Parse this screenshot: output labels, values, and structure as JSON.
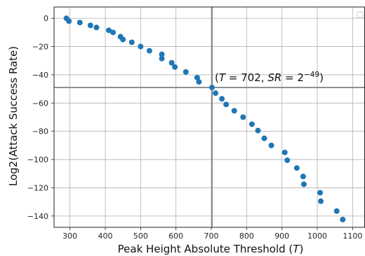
{
  "chart_data": {
    "type": "scatter",
    "title": "",
    "xlabel": "Peak Height Absolute Threshold (T)",
    "ylabel": "Log2(Attack Success Rate)",
    "xlim": [
      255,
      1135
    ],
    "ylim": [
      -148,
      8
    ],
    "x_ticks": [
      300,
      400,
      500,
      600,
      700,
      800,
      900,
      1000,
      1100
    ],
    "y_ticks": [
      0,
      -20,
      -40,
      -60,
      -80,
      -100,
      -120,
      -140
    ],
    "grid": true,
    "legend": "top-right (empty)",
    "series": [
      {
        "color": "#1f77b4",
        "points": [
          [
            290,
            0
          ],
          [
            297,
            -2
          ],
          [
            328,
            -3
          ],
          [
            358,
            -5
          ],
          [
            375,
            -6.5
          ],
          [
            410,
            -8.5
          ],
          [
            422,
            -10
          ],
          [
            443,
            -13
          ],
          [
            450,
            -15
          ],
          [
            475,
            -17
          ],
          [
            500,
            -20
          ],
          [
            525,
            -23
          ],
          [
            560,
            -25.5
          ],
          [
            560,
            -28.5
          ],
          [
            588,
            -31.5
          ],
          [
            597,
            -34.5
          ],
          [
            628,
            -38
          ],
          [
            660,
            -42
          ],
          [
            665,
            -45
          ],
          [
            702,
            -49
          ],
          [
            712,
            -53
          ],
          [
            730,
            -57
          ],
          [
            742,
            -61
          ],
          [
            765,
            -65.5
          ],
          [
            790,
            -70
          ],
          [
            815,
            -75
          ],
          [
            832,
            -79.5
          ],
          [
            850,
            -85
          ],
          [
            870,
            -90
          ],
          [
            908,
            -95
          ],
          [
            915,
            -100.5
          ],
          [
            942,
            -106
          ],
          [
            960,
            -112
          ],
          [
            962,
            -117.5
          ],
          [
            1008,
            -123.5
          ],
          [
            1010,
            -129.5
          ],
          [
            1055,
            -136.5
          ],
          [
            1072,
            -142.5
          ]
        ]
      }
    ],
    "reference_lines": {
      "x": 702,
      "y": -49,
      "color": "#808080"
    },
    "annotation": {
      "x": 702,
      "y": -49,
      "T": "702",
      "SR_exponent": "−49"
    }
  }
}
